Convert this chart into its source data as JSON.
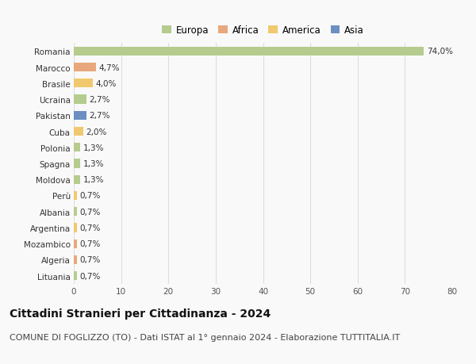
{
  "countries": [
    "Romania",
    "Marocco",
    "Brasile",
    "Ucraina",
    "Pakistan",
    "Cuba",
    "Polonia",
    "Spagna",
    "Moldova",
    "Perù",
    "Albania",
    "Argentina",
    "Mozambico",
    "Algeria",
    "Lituania"
  ],
  "values": [
    74.0,
    4.7,
    4.0,
    2.7,
    2.7,
    2.0,
    1.3,
    1.3,
    1.3,
    0.7,
    0.7,
    0.7,
    0.7,
    0.7,
    0.7
  ],
  "labels": [
    "74,0%",
    "4,7%",
    "4,0%",
    "2,7%",
    "2,7%",
    "2,0%",
    "1,3%",
    "1,3%",
    "1,3%",
    "0,7%",
    "0,7%",
    "0,7%",
    "0,7%",
    "0,7%",
    "0,7%"
  ],
  "continents": [
    "Europa",
    "Africa",
    "America",
    "Europa",
    "Asia",
    "America",
    "Europa",
    "Europa",
    "Europa",
    "America",
    "Europa",
    "America",
    "Africa",
    "Africa",
    "Europa"
  ],
  "continent_colors": {
    "Europa": "#b5cc8e",
    "Africa": "#e8a87c",
    "America": "#f0c96e",
    "Asia": "#6b8fc2"
  },
  "legend_order": [
    "Europa",
    "Africa",
    "America",
    "Asia"
  ],
  "legend_colors": [
    "#b5cc8e",
    "#e8a87c",
    "#f0c96e",
    "#6b8fc2"
  ],
  "xlim": [
    0,
    80
  ],
  "xticks": [
    0,
    10,
    20,
    30,
    40,
    50,
    60,
    70,
    80
  ],
  "title": "Cittadini Stranieri per Cittadinanza - 2024",
  "subtitle": "COMUNE DI FOGLIZZO (TO) - Dati ISTAT al 1° gennaio 2024 - Elaborazione TUTTITALIA.IT",
  "bg_color": "#f9f9f9",
  "grid_color": "#dddddd",
  "bar_height": 0.55,
  "title_fontsize": 10,
  "subtitle_fontsize": 8,
  "label_fontsize": 7.5,
  "tick_fontsize": 7.5,
  "legend_fontsize": 8.5
}
